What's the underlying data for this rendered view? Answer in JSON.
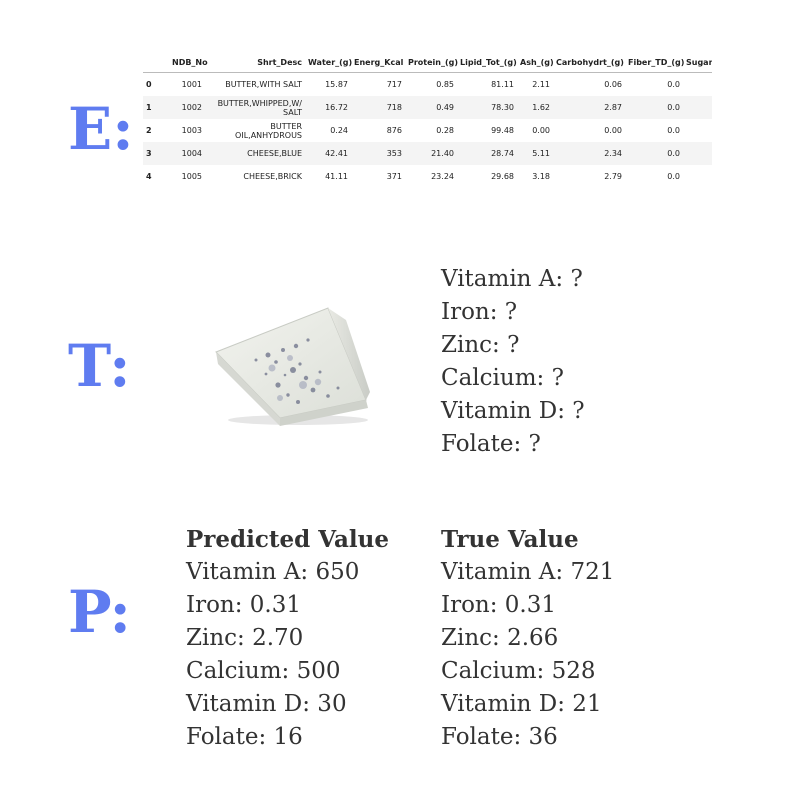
{
  "sections": {
    "e": "E:",
    "t": "T:",
    "p": "P:"
  },
  "table": {
    "columns": [
      "",
      "NDB_No",
      "Shrt_Desc",
      "Water_(g)",
      "Energ_Kcal",
      "Protein_(g)",
      "Lipid_Tot_(g)",
      "Ash_(g)",
      "Carbohydrt_(g)",
      "Fiber_TD_(g)",
      "Sugar"
    ],
    "rows": [
      [
        "0",
        "1001",
        "BUTTER,WITH SALT",
        "15.87",
        "717",
        "0.85",
        "81.11",
        "2.11",
        "0.06",
        "0.0",
        ""
      ],
      [
        "1",
        "1002",
        "BUTTER,WHIPPED,W/ SALT",
        "16.72",
        "718",
        "0.49",
        "78.30",
        "1.62",
        "2.87",
        "0.0",
        ""
      ],
      [
        "2",
        "1003",
        "BUTTER OIL,ANHYDROUS",
        "0.24",
        "876",
        "0.28",
        "99.48",
        "0.00",
        "0.00",
        "0.0",
        ""
      ],
      [
        "3",
        "1004",
        "CHEESE,BLUE",
        "42.41",
        "353",
        "21.40",
        "28.74",
        "5.11",
        "2.34",
        "0.0",
        ""
      ],
      [
        "4",
        "1005",
        "CHEESE,BRICK",
        "41.11",
        "371",
        "23.24",
        "29.68",
        "3.18",
        "2.79",
        "0.0",
        ""
      ]
    ]
  },
  "target": [
    "Vitamin A: ?",
    "Iron: ?",
    "Zinc: ?",
    "Calcium: ?",
    "Vitamin D: ?",
    "Folate: ?"
  ],
  "predicted": {
    "heading": "Predicted Value",
    "items": [
      "Vitamin A: 650",
      "Iron: 0.31",
      "Zinc: 2.70",
      "Calcium: 500",
      "Vitamin D: 30",
      "Folate: 16"
    ]
  },
  "true_values": {
    "heading": "True Value",
    "items": [
      "Vitamin A: 721",
      "Iron: 0.31",
      "Zinc: 2.66",
      "Calcium: 528",
      "Vitamin D: 21",
      "Folate: 36"
    ]
  }
}
